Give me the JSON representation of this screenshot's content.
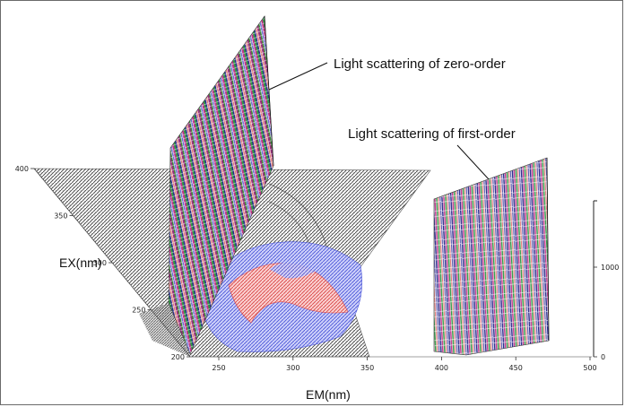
{
  "chart_data": {
    "type": "surface3d",
    "title": "",
    "x_axis": {
      "label": "EM(nm)",
      "range": [
        250,
        500
      ],
      "ticks": [
        250,
        300,
        350,
        400,
        450,
        500
      ]
    },
    "y_axis": {
      "label": "EX(nm)",
      "range": [
        200,
        400
      ],
      "ticks": [
        200,
        250,
        300,
        350,
        400
      ]
    },
    "z_axis": {
      "label": "",
      "ticks": [
        0,
        1000
      ]
    },
    "annotations": [
      {
        "id": "zero",
        "text": "Light scattering of zero-order"
      },
      {
        "id": "first",
        "text": "Light scattering of first-order"
      }
    ],
    "colors": {
      "base_mesh": "#4a4a4a",
      "fluorescence_blue": "#5560e0",
      "fluorescence_red": "#e05050",
      "wall_magenta": "#c0358a",
      "wall_green": "#2f9a45",
      "wall_navy": "#2a2a8a"
    }
  }
}
